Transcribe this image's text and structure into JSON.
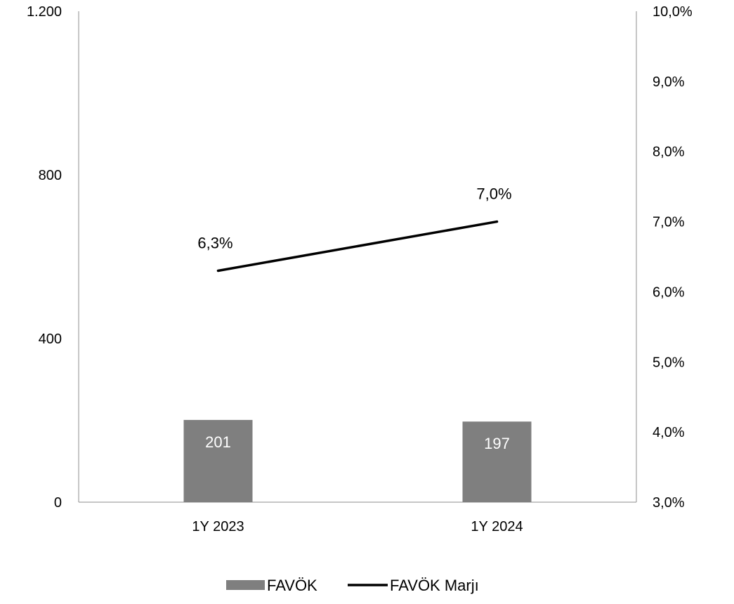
{
  "chart_data": {
    "type": "bar",
    "categories": [
      "1Y 2023",
      "1Y 2024"
    ],
    "series": [
      {
        "name": "FAVÖK",
        "kind": "bar",
        "axis": "left",
        "values": [
          201,
          197
        ],
        "data_labels": [
          "201",
          "197"
        ],
        "color": "#7f7f7f"
      },
      {
        "name": "FAVÖK Marjı",
        "kind": "line",
        "axis": "right",
        "values": [
          6.3,
          7.0
        ],
        "data_labels": [
          "6,3%",
          "7,0%"
        ],
        "color": "#000000"
      }
    ],
    "y_left": {
      "ylim": [
        0,
        1200
      ],
      "ticks": [
        0,
        400,
        800,
        1200
      ],
      "tick_labels": [
        "0",
        "400",
        "800",
        "1.200"
      ]
    },
    "y_right": {
      "ylim": [
        3.0,
        10.0
      ],
      "ticks": [
        3,
        4,
        5,
        6,
        7,
        8,
        9,
        10
      ],
      "tick_labels": [
        "3,0%",
        "4,0%",
        "5,0%",
        "6,0%",
        "7,0%",
        "8,0%",
        "9,0%",
        "10,0%"
      ]
    },
    "grid": false,
    "legend_position": "bottom-center"
  }
}
